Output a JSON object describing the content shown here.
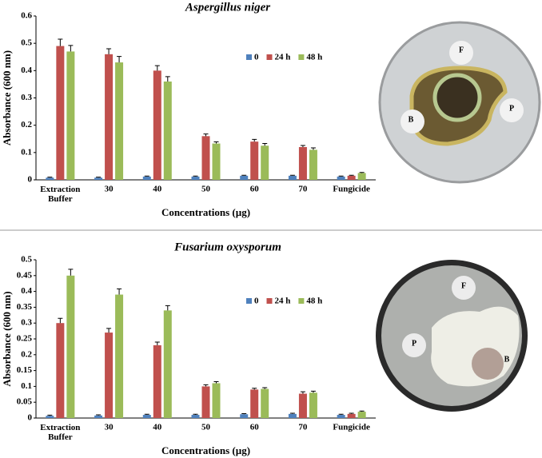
{
  "chart_data": [
    {
      "type": "bar",
      "title": "Aspergillus niger",
      "y_label": "Absorbance (600 nm)",
      "x_label": "Concentrations (µg)",
      "categories": [
        "Extraction Buffer",
        "30",
        "40",
        "50",
        "60",
        "70",
        "Fungicide"
      ],
      "ylim": [
        0,
        0.6
      ],
      "yticks": [
        0,
        0.1,
        0.2,
        0.3,
        0.4,
        0.5,
        0.6
      ],
      "series": [
        {
          "name": "0",
          "color": "#4f81bd",
          "values": [
            0.008,
            0.008,
            0.012,
            0.012,
            0.015,
            0.015,
            0.012
          ],
          "errors": [
            0.002,
            0.002,
            0.002,
            0.002,
            0.002,
            0.002,
            0.002
          ]
        },
        {
          "name": "24 h",
          "color": "#c0504d",
          "values": [
            0.49,
            0.46,
            0.4,
            0.16,
            0.14,
            0.12,
            0.015
          ],
          "errors": [
            0.025,
            0.02,
            0.018,
            0.008,
            0.008,
            0.006,
            0.002
          ]
        },
        {
          "name": "48 h",
          "color": "#9bbb59",
          "values": [
            0.47,
            0.43,
            0.36,
            0.133,
            0.125,
            0.11,
            0.025
          ],
          "errors": [
            0.022,
            0.022,
            0.018,
            0.006,
            0.008,
            0.007,
            0.002
          ]
        }
      ]
    },
    {
      "type": "bar",
      "title": "Fusarium oxysporum",
      "y_label": "Absorbance (600 nm)",
      "x_label": "Concentrations (µg)",
      "categories": [
        "Extraction Buffer",
        "30",
        "40",
        "50",
        "60",
        "70",
        "Fungicide"
      ],
      "ylim": [
        0,
        0.5
      ],
      "yticks": [
        0,
        0.05,
        0.1,
        0.15,
        0.2,
        0.25,
        0.3,
        0.35,
        0.4,
        0.45,
        0.5
      ],
      "series": [
        {
          "name": "0",
          "color": "#4f81bd",
          "values": [
            0.007,
            0.008,
            0.01,
            0.01,
            0.012,
            0.013,
            0.01
          ],
          "errors": [
            0.002,
            0.002,
            0.002,
            0.002,
            0.002,
            0.002,
            0.002
          ]
        },
        {
          "name": "24 h",
          "color": "#c0504d",
          "values": [
            0.3,
            0.27,
            0.23,
            0.1,
            0.09,
            0.077,
            0.013
          ],
          "errors": [
            0.015,
            0.013,
            0.01,
            0.005,
            0.004,
            0.006,
            0.002
          ]
        },
        {
          "name": "48 h",
          "color": "#9bbb59",
          "values": [
            0.45,
            0.39,
            0.34,
            0.11,
            0.092,
            0.08,
            0.02
          ],
          "errors": [
            0.02,
            0.018,
            0.015,
            0.005,
            0.004,
            0.005,
            0.002
          ]
        }
      ]
    }
  ],
  "images": [
    {
      "labels": [
        "F",
        "B",
        "P"
      ]
    },
    {
      "labels": [
        "F",
        "P",
        "B"
      ]
    }
  ]
}
